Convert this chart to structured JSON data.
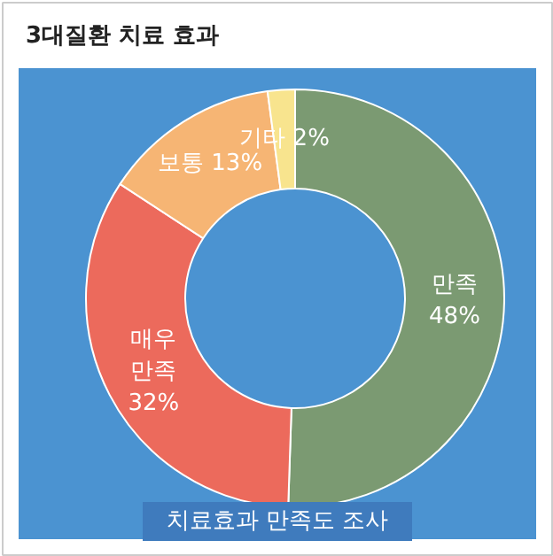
{
  "chart_data": {
    "type": "donut",
    "title": "3대질환 치료 효과",
    "categories": [
      "만족",
      "매우 만족",
      "보통",
      "기타"
    ],
    "values": [
      48,
      32,
      13,
      2
    ],
    "value_labels": [
      "48%",
      "32%",
      "13%",
      "2%"
    ],
    "colors": [
      "#7b9a72",
      "#ec6a5c",
      "#f6b574",
      "#f8e48e"
    ],
    "annotations": [
      "치료효과 만족도 조사"
    ]
  }
}
